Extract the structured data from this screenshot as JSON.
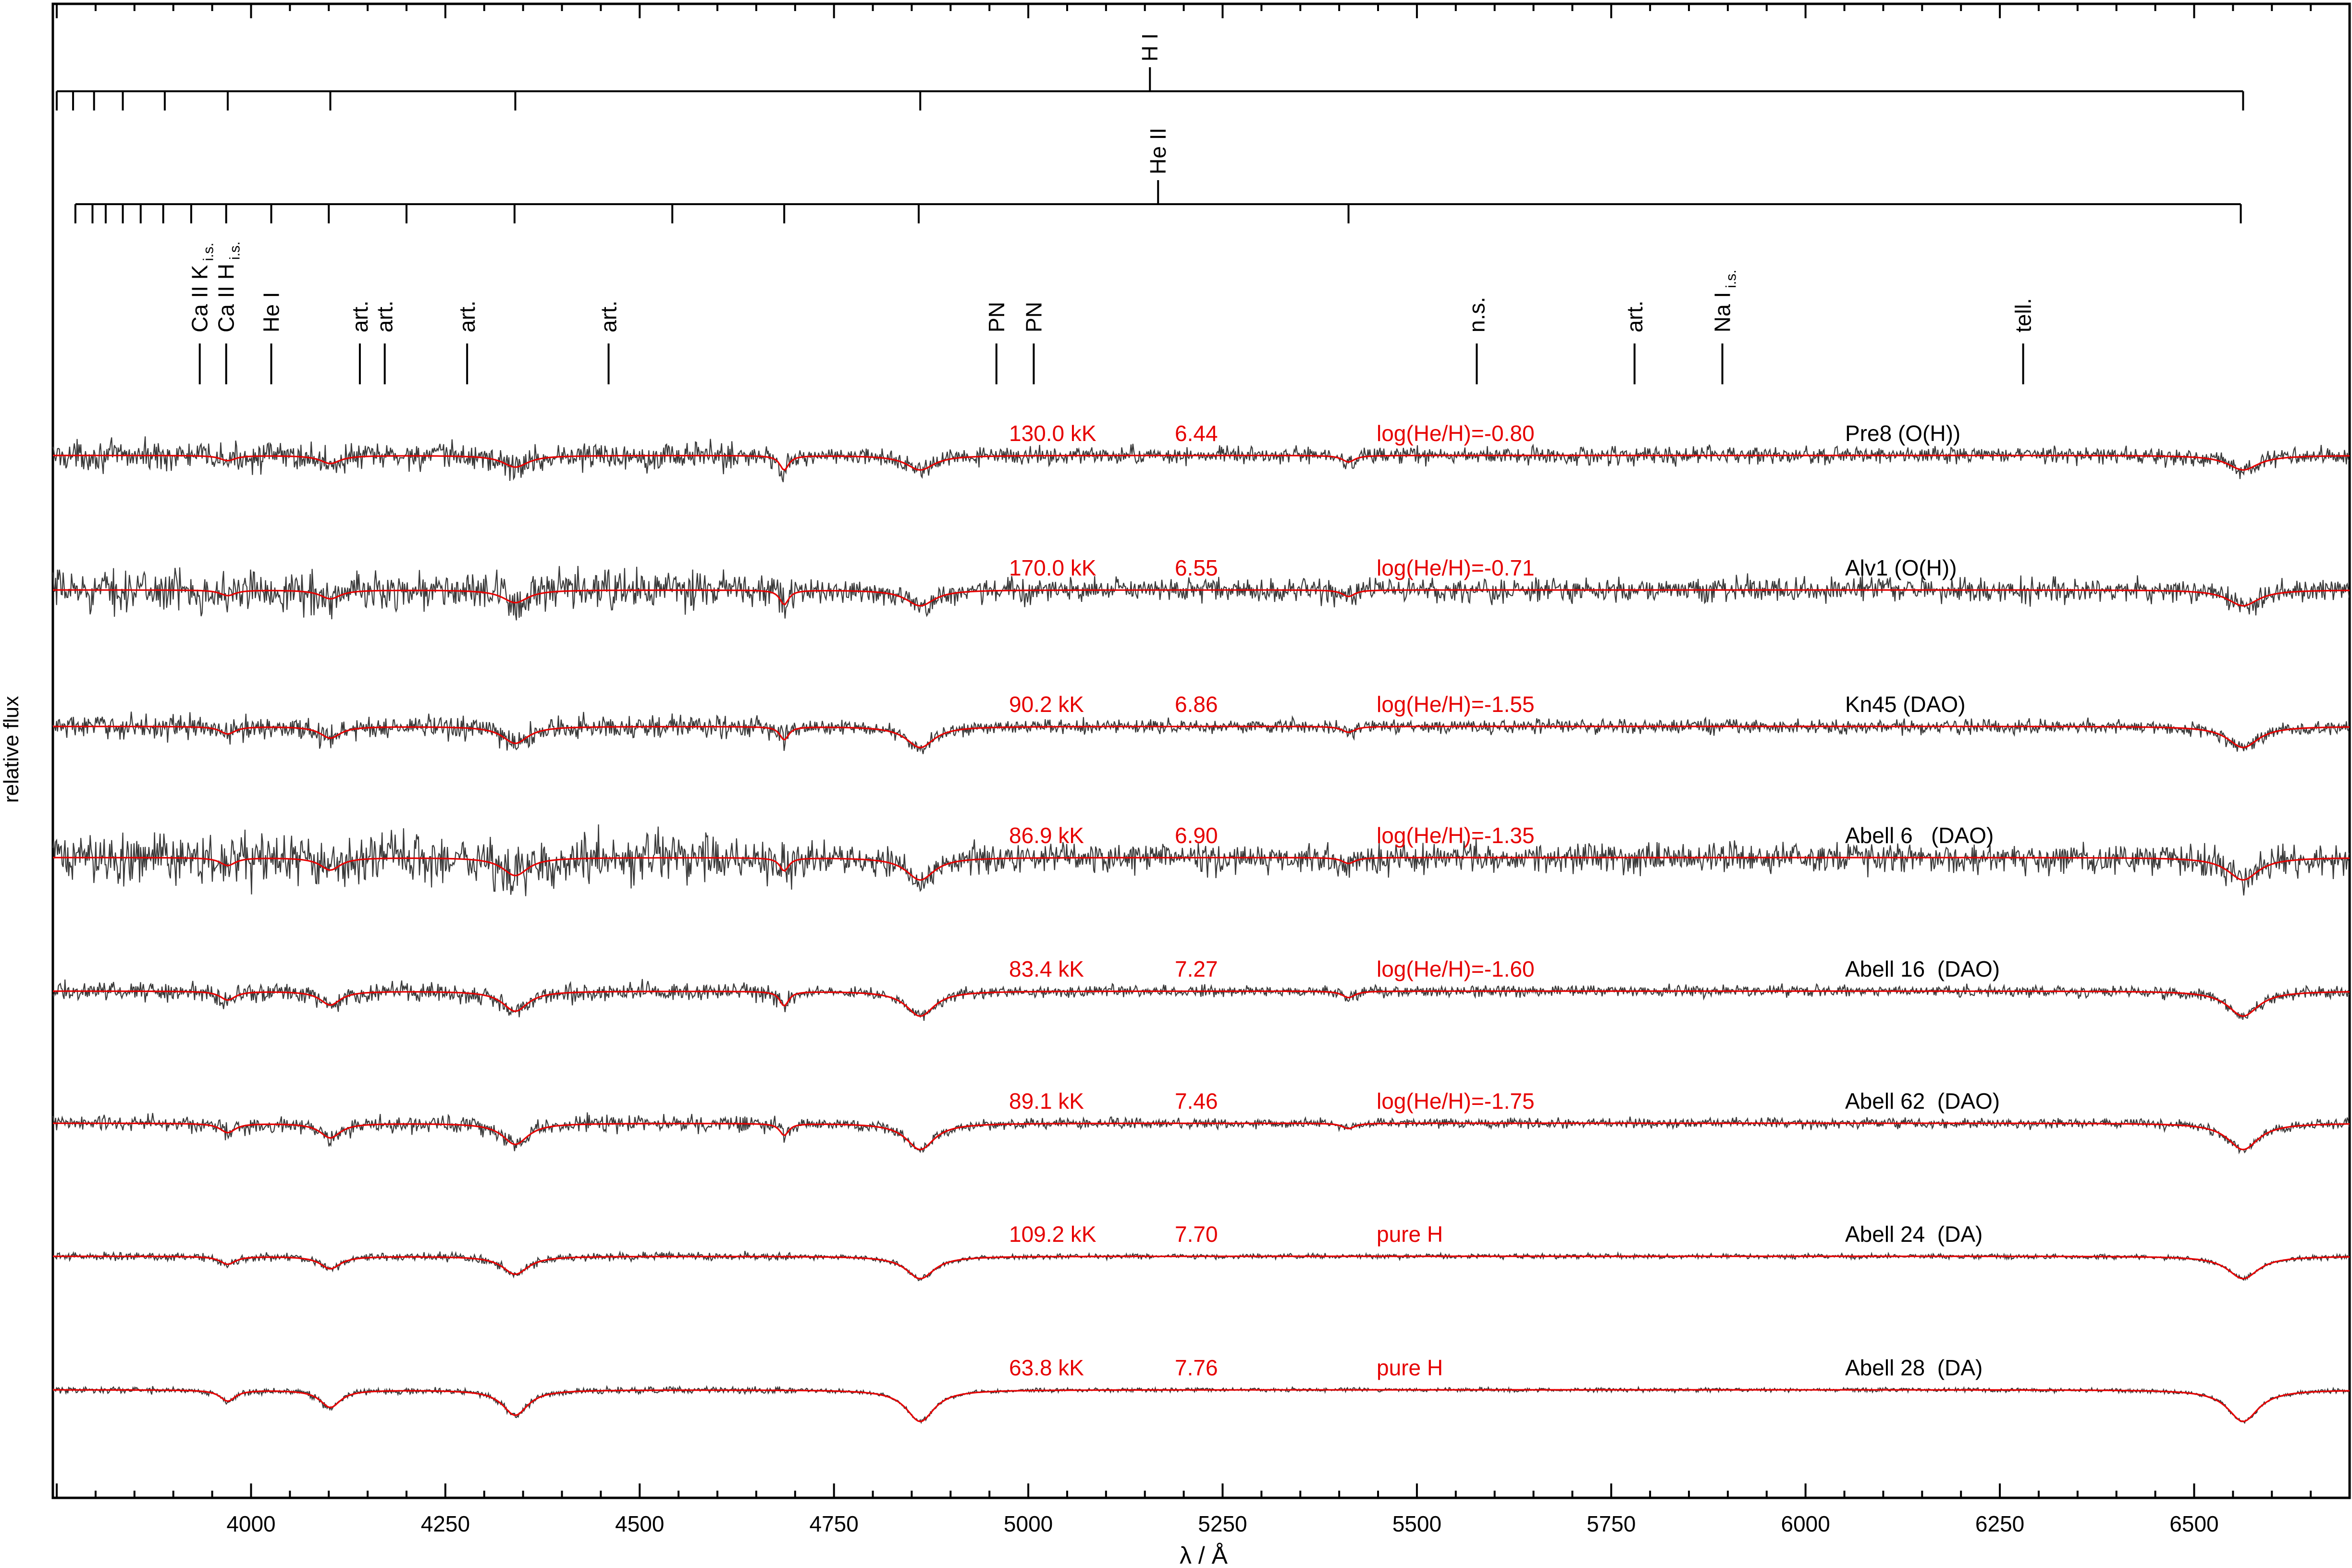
{
  "chart_data": {
    "type": "line",
    "xlabel": "λ / Å",
    "ylabel": "relative flux",
    "xlim": [
      3745,
      6700
    ],
    "xticks": [
      4000,
      4250,
      4500,
      4750,
      5000,
      5250,
      5500,
      5750,
      6000,
      6250,
      6500
    ],
    "line_series": [
      {
        "name": "H I",
        "lines": [
          3750,
          3771,
          3798,
          3835,
          3889,
          3970,
          4102,
          4340,
          4861,
          6563
        ]
      },
      {
        "name": "He II",
        "lines": [
          3774,
          3796,
          3813,
          3835,
          3858,
          3887,
          3923,
          3968,
          4026,
          4100,
          4200,
          4339,
          4542,
          4686,
          4859,
          5412,
          6560
        ]
      }
    ],
    "feature_labels": [
      {
        "text": "Ca II K",
        "sub": "i.s.",
        "wavelength": 3934
      },
      {
        "text": "Ca II H",
        "sub": "i.s.",
        "wavelength": 3968
      },
      {
        "text": "He I",
        "sub": "",
        "wavelength": 4026
      },
      {
        "text": "art.",
        "sub": "",
        "wavelength": 4140
      },
      {
        "text": "art.",
        "sub": "",
        "wavelength": 4172
      },
      {
        "text": "art.",
        "sub": "",
        "wavelength": 4278
      },
      {
        "text": "art.",
        "sub": "",
        "wavelength": 4460
      },
      {
        "text": "PN",
        "sub": "",
        "wavelength": 4959
      },
      {
        "text": "PN",
        "sub": "",
        "wavelength": 5007
      },
      {
        "text": "n.s.",
        "sub": "",
        "wavelength": 5577
      },
      {
        "text": "art.",
        "sub": "",
        "wavelength": 5780
      },
      {
        "text": "Na I",
        "sub": "i.s.",
        "wavelength": 5893
      },
      {
        "text": "tell.",
        "sub": "",
        "wavelength": 6280
      }
    ],
    "series": [
      {
        "name": "Pre8 (O(H))",
        "teff": "130.0 kK",
        "logg": "6.44",
        "abund": "log(He/H)=-0.80",
        "noise": 0.42,
        "depth": 0.55,
        "he2": 0.55
      },
      {
        "name": "Alv1 (O(H))",
        "teff": "170.0 kK",
        "logg": "6.55",
        "abund": "log(He/H)=-0.71",
        "noise": 0.6,
        "depth": 0.6,
        "he2": 0.55
      },
      {
        "name": "Kn45 (DAO)",
        "teff": "90.2 kK",
        "logg": "6.86",
        "abund": "log(He/H)=-1.55",
        "noise": 0.35,
        "depth": 0.8,
        "he2": 0.5
      },
      {
        "name": "Abell 6   (DAO)",
        "teff": "86.9 kK",
        "logg": "6.90",
        "abund": "log(He/H)=-1.35",
        "noise": 0.75,
        "depth": 0.85,
        "he2": 0.5
      },
      {
        "name": "Abell 16  (DAO)",
        "teff": "83.4 kK",
        "logg": "7.27",
        "abund": "log(He/H)=-1.60",
        "noise": 0.28,
        "depth": 0.95,
        "he2": 0.55
      },
      {
        "name": "Abell 62  (DAO)",
        "teff": "89.1 kK",
        "logg": "7.46",
        "abund": "log(He/H)=-1.75",
        "noise": 0.25,
        "depth": 1.0,
        "he2": 0.45
      },
      {
        "name": "Abell 24  (DA)",
        "teff": "109.2 kK",
        "logg": "7.70",
        "abund": "pure H",
        "noise": 0.12,
        "depth": 0.85,
        "he2": 0.0
      },
      {
        "name": "Abell 28  (DA)",
        "teff": "63.8 kK",
        "logg": "7.76",
        "abund": "pure H",
        "noise": 0.1,
        "depth": 1.2,
        "he2": 0.0
      }
    ],
    "colors": {
      "observed": "#3a3a3a",
      "model": "#e60000",
      "axis": "#000000"
    }
  }
}
